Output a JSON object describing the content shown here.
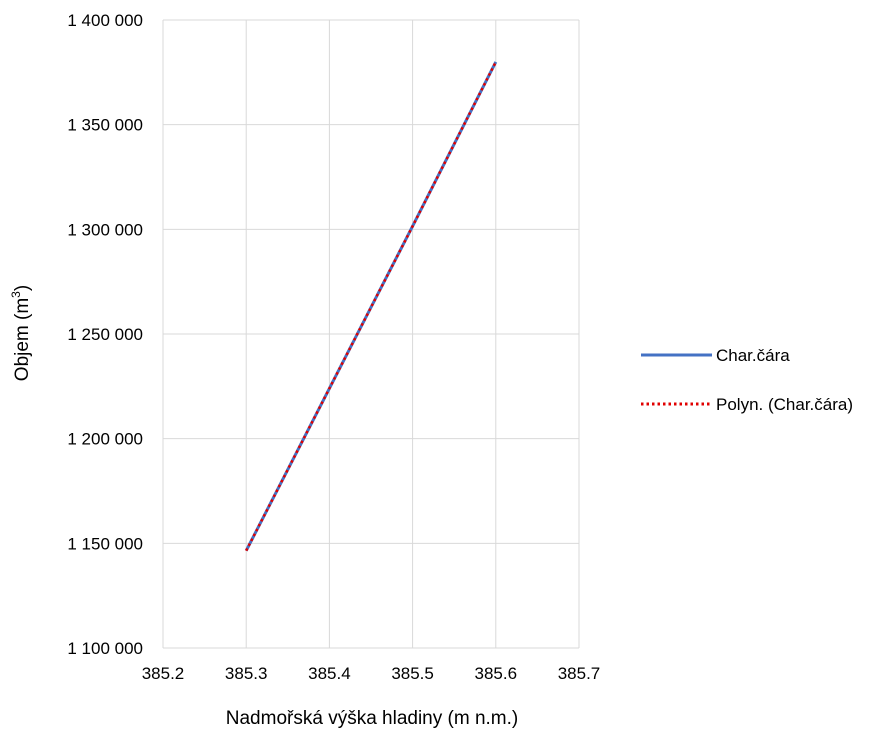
{
  "chart_data": {
    "type": "line",
    "xlabel": "Nadmořská výška hladiny (m n.m.)",
    "ylabel_main": "Objem (m",
    "ylabel_sup": "3",
    "ylabel_close": ")",
    "xlim": [
      385.2,
      385.7
    ],
    "ylim": [
      1100000,
      1400000
    ],
    "x_ticks": [
      385.2,
      385.3,
      385.4,
      385.5,
      385.6,
      385.7
    ],
    "x_tick_labels": [
      "385.2",
      "385.3",
      "385.4",
      "385.5",
      "385.6",
      "385.7"
    ],
    "y_ticks": [
      1100000,
      1150000,
      1200000,
      1250000,
      1300000,
      1350000,
      1400000
    ],
    "y_tick_labels": [
      "1 100 000",
      "1 150 000",
      "1 200 000",
      "1 250 000",
      "1 300 000",
      "1 350 000",
      "1 400 000"
    ],
    "grid": true,
    "legend_position": "right",
    "series": [
      {
        "name": "Char.čára",
        "style": "solid",
        "color": "#4472C4",
        "x": [
          385.3,
          385.4,
          385.5,
          385.6
        ],
        "y": [
          1146500,
          1224000,
          1301500,
          1380000
        ]
      },
      {
        "name": "Polyn. (Char.čára)",
        "style": "dotted",
        "color": "#E00000",
        "x": [
          385.3,
          385.4,
          385.5,
          385.6
        ],
        "y": [
          1146500,
          1224000,
          1301500,
          1380000
        ]
      }
    ]
  }
}
